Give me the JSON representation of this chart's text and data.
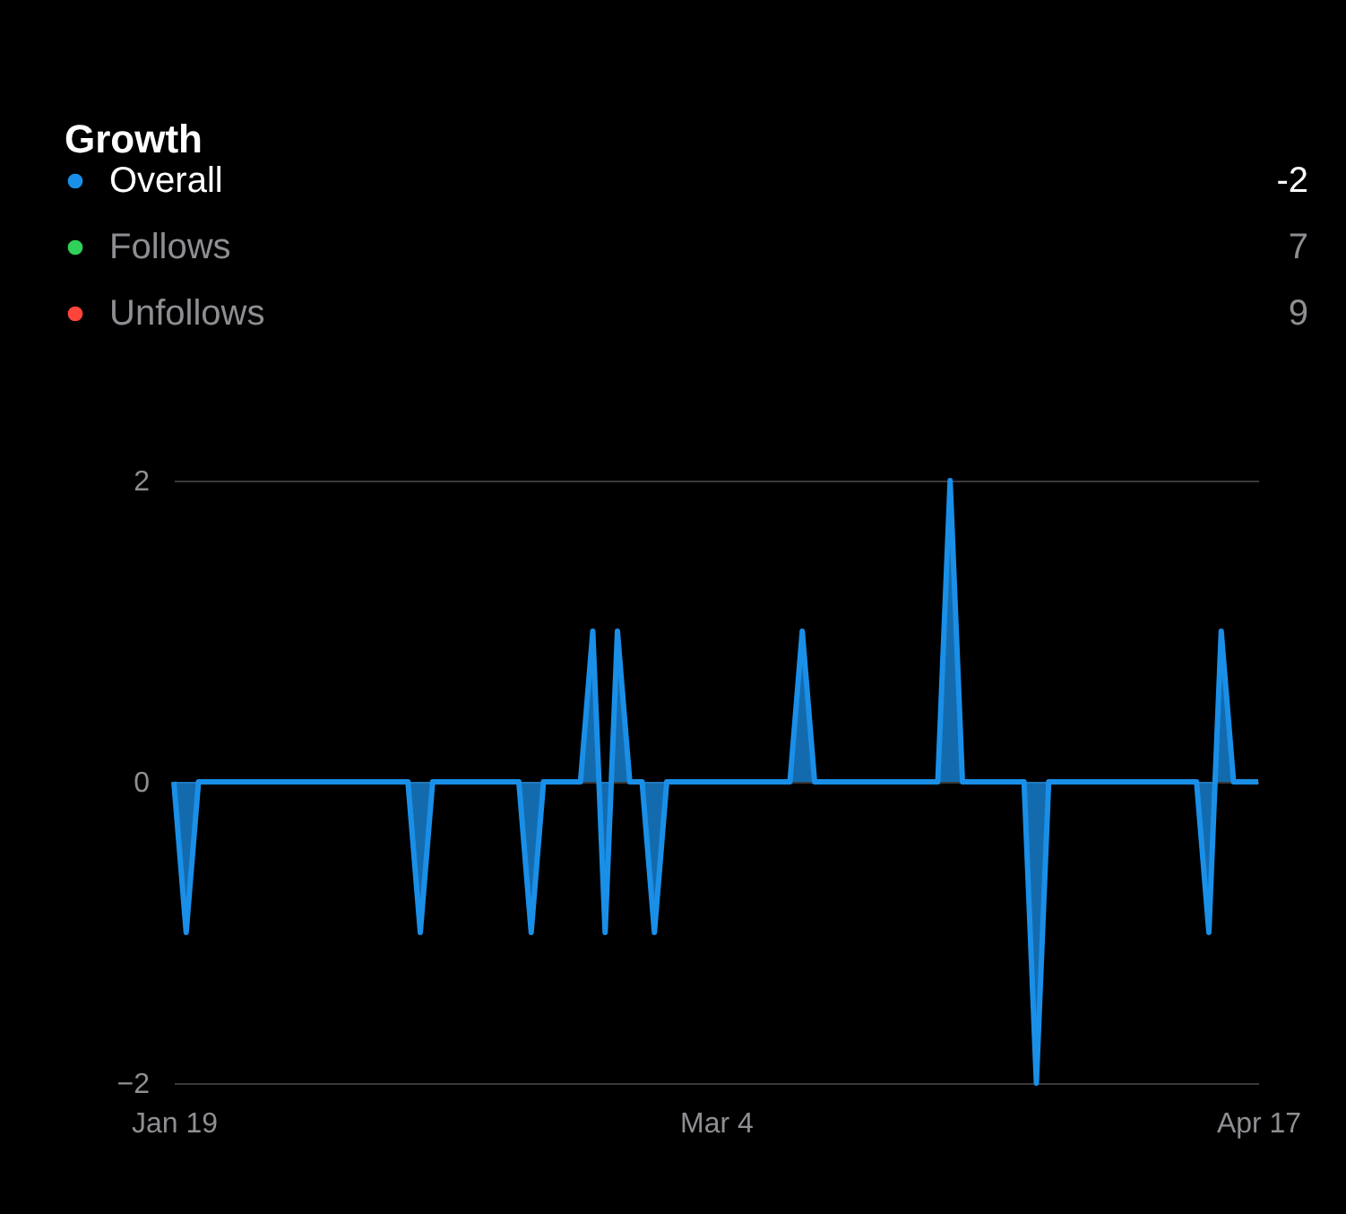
{
  "chart_data": {
    "type": "area",
    "title": "Growth",
    "x": [
      "--01-19",
      "--01-20",
      "--01-21",
      "--02-07",
      "--02-08",
      "--02-09",
      "--02-16",
      "--02-17",
      "--02-18",
      "--02-21",
      "--02-22",
      "--02-23",
      "--02-24",
      "--02-25",
      "--02-26",
      "--02-27",
      "--02-28",
      "--03-10",
      "--03-11",
      "--03-12",
      "--03-22",
      "--03-23",
      "--03-24",
      "--03-29",
      "--03-30",
      "--03-31",
      "--04-12",
      "--04-13",
      "--04-14",
      "--04-15",
      "--04-17"
    ],
    "series": [
      {
        "name": "Overall",
        "color": "#1a8fe8",
        "values": [
          0,
          -1,
          0,
          0,
          -1,
          0,
          0,
          -1,
          0,
          0,
          1,
          -1,
          1,
          0,
          0,
          -1,
          0,
          0,
          1,
          0,
          0,
          2,
          0,
          0,
          -2,
          0,
          0,
          -1,
          1,
          0,
          0
        ]
      },
      {
        "name": "Follows",
        "color": "#30d158",
        "values": [
          null,
          null,
          null,
          null,
          null,
          null,
          null,
          null,
          null,
          null,
          null,
          null,
          null,
          null,
          null,
          null,
          null,
          null,
          null,
          null,
          null,
          null,
          null,
          null,
          null,
          null,
          null,
          null,
          null,
          null,
          null
        ]
      },
      {
        "name": "Unfollows",
        "color": "#ff453a",
        "values": [
          null,
          null,
          null,
          null,
          null,
          null,
          null,
          null,
          null,
          null,
          null,
          null,
          null,
          null,
          null,
          null,
          null,
          null,
          null,
          null,
          null,
          null,
          null,
          null,
          null,
          null,
          null,
          null,
          null,
          null,
          null
        ]
      }
    ],
    "annotations": [
      "-2",
      "7",
      "9"
    ],
    "xlim": [
      "--01-19",
      "--04-17"
    ],
    "xticks": [
      {
        "value": "--01-19",
        "label": "Jan 19"
      },
      {
        "value": "--03-04",
        "label": "Mar 4"
      },
      {
        "value": "--04-17",
        "label": "Apr 17"
      }
    ],
    "ylim": [
      -2,
      2
    ],
    "yticks": [
      -2,
      0,
      2
    ],
    "grid": "y",
    "legend": "top"
  }
}
